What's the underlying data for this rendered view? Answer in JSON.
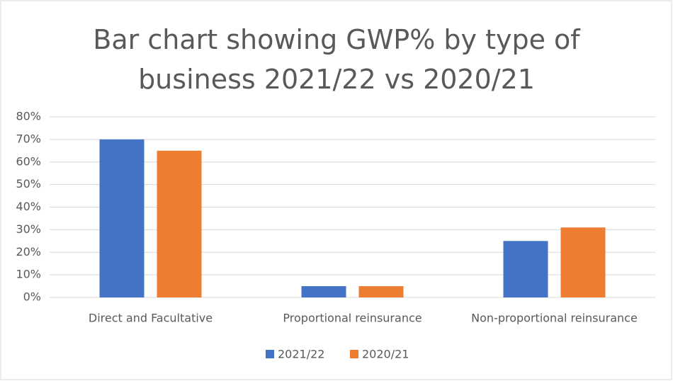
{
  "chart_data": {
    "type": "bar",
    "title": "Bar chart showing GWP% by type of business 2021/22 vs 2020/21",
    "categories": [
      "Direct and Facultative",
      "Proportional reinsurance",
      "Non-proportional reinsurance"
    ],
    "series": [
      {
        "name": "2021/22",
        "color": "#4472c4",
        "values": [
          70,
          5,
          25
        ]
      },
      {
        "name": "2020/21",
        "color": "#ed7d31",
        "values": [
          65,
          5,
          31
        ]
      }
    ],
    "ylim": [
      0,
      80
    ],
    "yticks": [
      {
        "value": 0,
        "label": "0%"
      },
      {
        "value": 10,
        "label": "10%"
      },
      {
        "value": 20,
        "label": "20%"
      },
      {
        "value": 30,
        "label": "30%"
      },
      {
        "value": 40,
        "label": "40%"
      },
      {
        "value": 50,
        "label": "50%"
      },
      {
        "value": 60,
        "label": "60%"
      },
      {
        "value": 70,
        "label": "70%"
      },
      {
        "value": 80,
        "label": "80%"
      }
    ],
    "grid": true,
    "legend": "bottom"
  }
}
